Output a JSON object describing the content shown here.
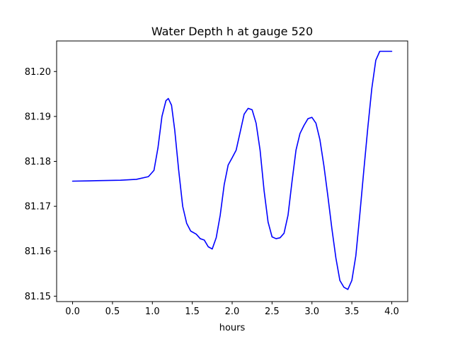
{
  "chart_data": {
    "type": "line",
    "title": "Water Depth h at gauge 520",
    "xlabel": "hours",
    "ylabel": "",
    "xlim": [
      -0.2,
      4.2
    ],
    "ylim": [
      81.1488,
      81.2068
    ],
    "x_ticks": [
      0.0,
      0.5,
      1.0,
      1.5,
      2.0,
      2.5,
      3.0,
      3.5,
      4.0
    ],
    "x_tick_labels": [
      "0.0",
      "0.5",
      "1.0",
      "1.5",
      "2.0",
      "2.5",
      "3.0",
      "3.5",
      "4.0"
    ],
    "y_ticks": [
      81.15,
      81.16,
      81.17,
      81.18,
      81.19,
      81.2
    ],
    "y_tick_labels": [
      "81.15",
      "81.16",
      "81.17",
      "81.18",
      "81.19",
      "81.20"
    ],
    "grid": false,
    "series": [
      {
        "color": "#0000ff",
        "x": [
          0.0,
          0.3,
          0.6,
          0.8,
          0.95,
          1.02,
          1.07,
          1.12,
          1.17,
          1.2,
          1.24,
          1.28,
          1.33,
          1.38,
          1.43,
          1.48,
          1.55,
          1.6,
          1.65,
          1.7,
          1.75,
          1.8,
          1.85,
          1.9,
          1.95,
          2.0,
          2.05,
          2.1,
          2.15,
          2.2,
          2.25,
          2.3,
          2.35,
          2.4,
          2.45,
          2.5,
          2.55,
          2.6,
          2.65,
          2.7,
          2.75,
          2.8,
          2.85,
          2.9,
          2.95,
          3.0,
          3.05,
          3.1,
          3.15,
          3.2,
          3.25,
          3.3,
          3.35,
          3.4,
          3.45,
          3.5,
          3.55,
          3.6,
          3.65,
          3.7,
          3.75,
          3.8,
          3.85,
          3.9,
          3.95,
          4.0
        ],
        "y": [
          81.1756,
          81.1757,
          81.1758,
          81.176,
          81.1766,
          81.178,
          81.183,
          81.19,
          81.1935,
          81.194,
          81.1925,
          81.187,
          81.178,
          81.17,
          81.1662,
          81.1645,
          81.1638,
          81.1628,
          81.1625,
          81.161,
          81.1605,
          81.163,
          81.168,
          81.1748,
          81.1792,
          81.1808,
          81.1825,
          81.1865,
          81.1905,
          81.1918,
          81.1915,
          81.1885,
          81.1825,
          81.1735,
          81.1665,
          81.1632,
          81.1628,
          81.163,
          81.164,
          81.168,
          81.1755,
          81.1825,
          81.1862,
          81.188,
          81.1895,
          81.1898,
          81.1885,
          81.1848,
          81.179,
          81.1722,
          81.165,
          81.1585,
          81.1535,
          81.152,
          81.1515,
          81.1535,
          81.159,
          81.1682,
          81.178,
          81.1875,
          81.1962,
          81.2025,
          81.2045,
          81.2045,
          81.2045,
          81.2045
        ]
      }
    ]
  }
}
